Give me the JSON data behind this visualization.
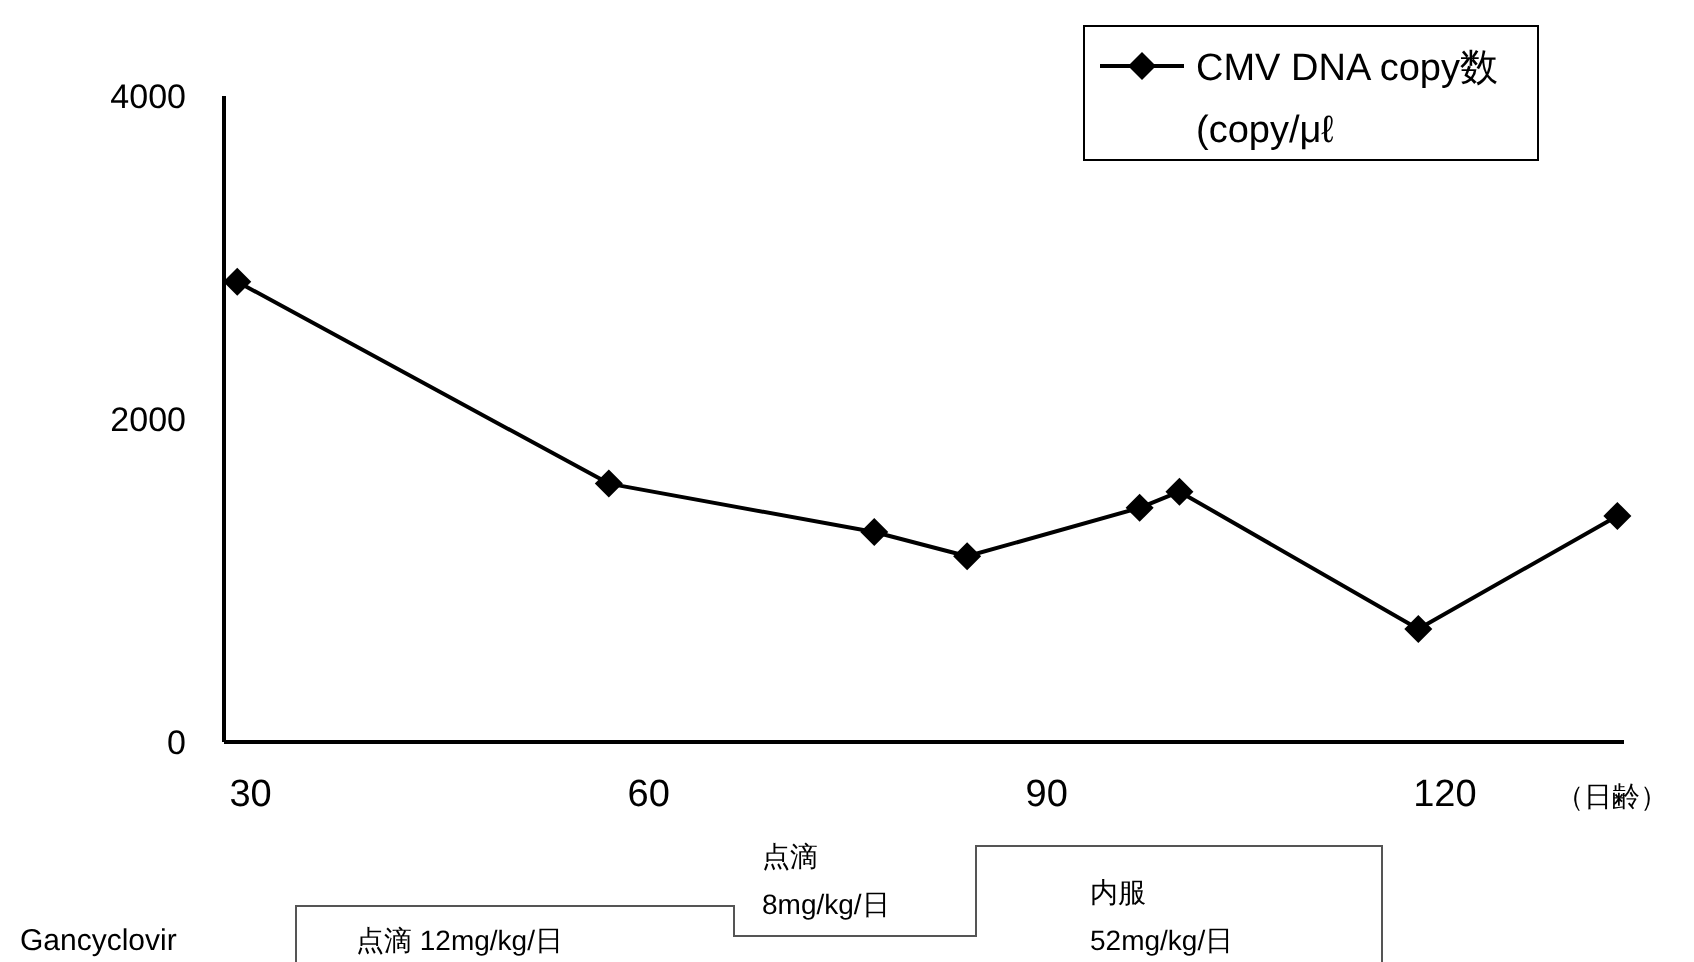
{
  "chart_data": {
    "type": "line",
    "xlabel": "（日齢）",
    "xlim": [
      28,
      133.5
    ],
    "xticks": [
      30,
      60,
      90,
      120
    ],
    "ylim": [
      0,
      4000
    ],
    "yticks": [
      0,
      2000,
      4000
    ],
    "series": [
      {
        "name": "CMV DNA copy数\n(copy/μℓ",
        "color": "#000000",
        "x": [
          29,
          57,
          77,
          84,
          97,
          100,
          118,
          133
        ],
        "values": [
          2850,
          1600,
          1300,
          1150,
          1450,
          1550,
          700,
          1400
        ]
      }
    ],
    "marker": "diamond",
    "line_style": "solid",
    "grid": false,
    "legend": "top right",
    "annotations": [
      "Gancyclovir",
      "点滴  12mg/kg/日",
      "点滴\n8mg/kg/日",
      "内服\n52mg/kg/日"
    ]
  }
}
